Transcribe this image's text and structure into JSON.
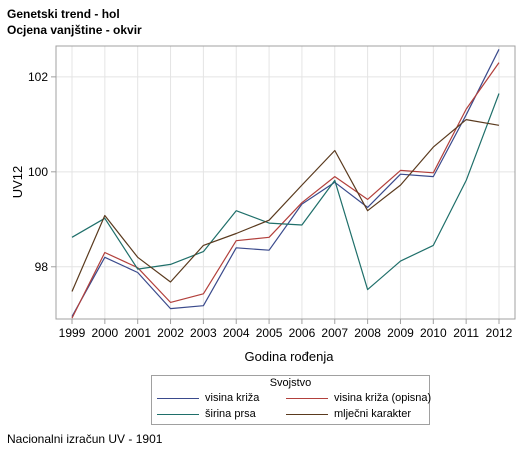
{
  "titles": {
    "line1": "Genetski trend - hol",
    "line2": "Ocjena vanjštine - okvir"
  },
  "footnote": "Nacionalni izračun UV - 1901",
  "chart_data": {
    "type": "line",
    "x": [
      1999,
      2000,
      2001,
      2002,
      2003,
      2004,
      2005,
      2006,
      2007,
      2008,
      2009,
      2010,
      2011,
      2012
    ],
    "xlabel": "Godina rođenja",
    "ylabel": "UV12",
    "xlim": [
      1999,
      2012
    ],
    "ylim": [
      96.9,
      102.65
    ],
    "yticks": [
      98,
      100,
      102
    ],
    "grid": true,
    "legend": {
      "title": "Svojstvo",
      "position": "bottom"
    },
    "series": [
      {
        "name": "visina križa",
        "color": "#3a4a8c",
        "values": [
          96.95,
          98.2,
          97.88,
          97.12,
          97.18,
          98.4,
          98.35,
          99.32,
          99.78,
          99.25,
          99.95,
          99.9,
          101.2,
          102.58
        ]
      },
      {
        "name": "visina križa (opisna)",
        "color": "#b2403c",
        "values": [
          96.92,
          98.3,
          97.98,
          97.25,
          97.43,
          98.55,
          98.62,
          99.35,
          99.9,
          99.42,
          100.03,
          99.98,
          101.32,
          102.3
        ]
      },
      {
        "name": "širina prsa",
        "color": "#1f6f6a",
        "values": [
          98.62,
          99.02,
          97.95,
          98.05,
          98.32,
          99.18,
          98.92,
          98.88,
          99.82,
          97.52,
          98.12,
          98.45,
          99.82,
          101.65
        ]
      },
      {
        "name": "mlječni karakter",
        "color": "#5a3a1e",
        "values": [
          97.48,
          99.08,
          98.2,
          97.68,
          98.45,
          98.7,
          98.98,
          99.72,
          100.45,
          99.18,
          99.72,
          100.52,
          101.1,
          100.98
        ]
      }
    ]
  }
}
